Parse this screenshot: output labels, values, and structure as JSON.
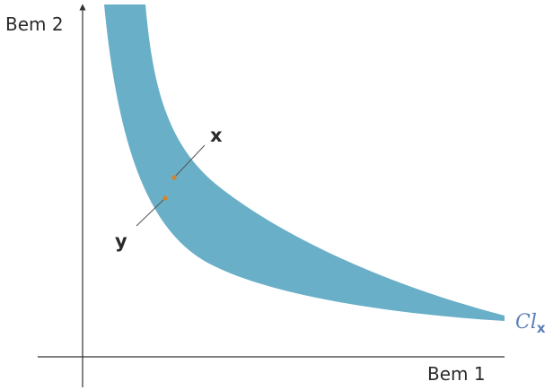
{
  "axes": {
    "x_label": "Bem 1",
    "y_label": "Bem 2"
  },
  "points": {
    "x_label": "x",
    "y_label": "y"
  },
  "curve": {
    "label_main": "Cl",
    "label_sub": "x"
  },
  "colors": {
    "band": "#6aafc8",
    "axis": "#333333",
    "point": "#d9822b",
    "leader": "#555555",
    "curve_label": "#5b7fb8"
  }
}
